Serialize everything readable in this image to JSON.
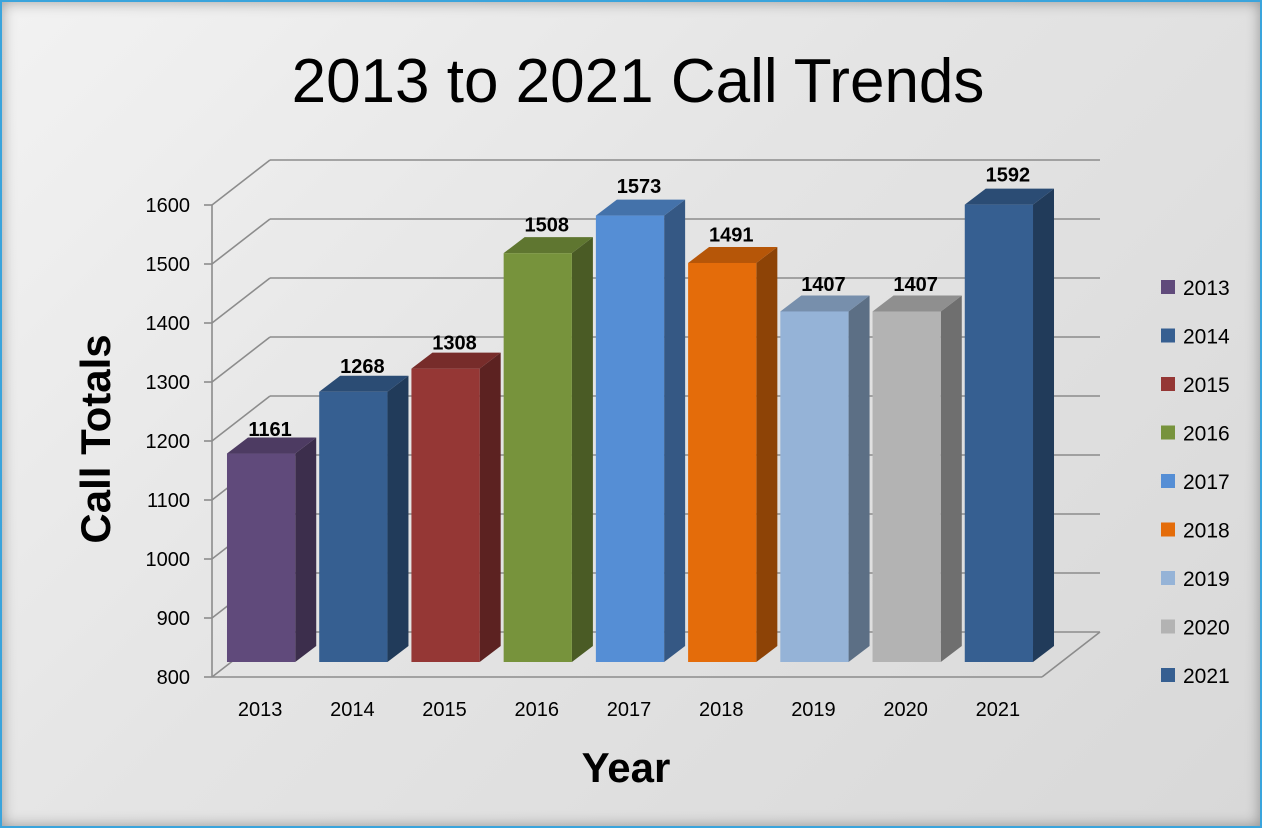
{
  "chart_data": {
    "type": "bar",
    "title": "2013 to 2021 Call Trends",
    "xlabel": "Year",
    "ylabel": "Call Totals",
    "categories": [
      "2013",
      "2014",
      "2015",
      "2016",
      "2017",
      "2018",
      "2019",
      "2020",
      "2021"
    ],
    "values": [
      1161,
      1268,
      1308,
      1508,
      1573,
      1491,
      1407,
      1407,
      1592
    ],
    "ylim": [
      800,
      1600
    ],
    "yticks": [
      800,
      900,
      1000,
      1100,
      1200,
      1300,
      1400,
      1500,
      1600
    ],
    "grid": true,
    "style_3d": true,
    "legend_position": "right",
    "legend": [
      "2013",
      "2014",
      "2015",
      "2016",
      "2017",
      "2018",
      "2019",
      "2020",
      "2021"
    ],
    "colors": [
      "#604a7b",
      "#365f91",
      "#953735",
      "#77933c",
      "#558ed5",
      "#e46c0a",
      "#95b3d7",
      "#b3b3b3",
      "#365f91"
    ]
  }
}
